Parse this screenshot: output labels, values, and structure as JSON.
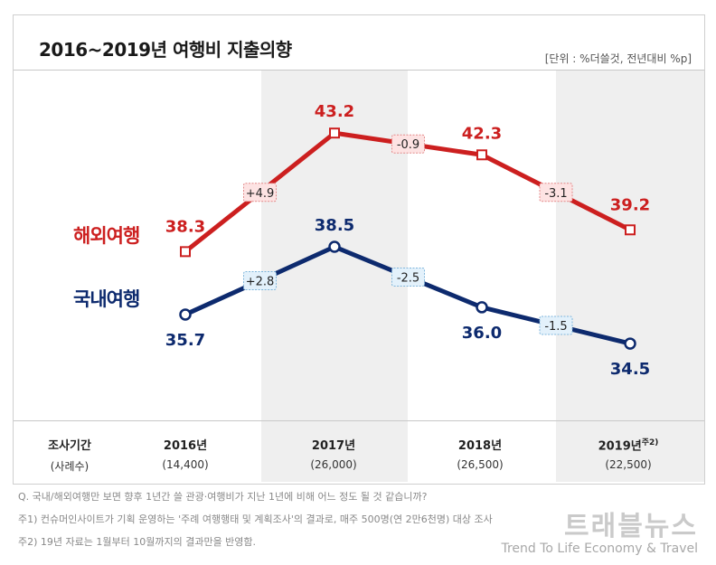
{
  "header": {
    "title": "2016~2019년 여행비 지출의향",
    "unit": "[단위 : %더쓸것, 전년대비 %p]"
  },
  "chart_data": {
    "type": "line",
    "categories": [
      "2016년",
      "2017년",
      "2018년",
      "2019년"
    ],
    "series": [
      {
        "name": "해외여행",
        "color": "#cc1f1f",
        "values": [
          38.3,
          43.2,
          42.3,
          39.2
        ],
        "changes": [
          "+4.9",
          "-0.9",
          "-3.1"
        ]
      },
      {
        "name": "국내여행",
        "color": "#0d2a6e",
        "values": [
          35.7,
          38.5,
          36.0,
          34.5
        ],
        "changes": [
          "+2.8",
          "-2.5",
          "-1.5"
        ]
      }
    ],
    "ylim": [
      32,
      45
    ]
  },
  "table": {
    "header_label": "조사기간",
    "header_sub": "(사례수)",
    "periods": [
      {
        "label": "2016년",
        "sup": "",
        "n": "(14,400)"
      },
      {
        "label": "2017년",
        "sup": "",
        "n": "(26,000)"
      },
      {
        "label": "2018년",
        "sup": "",
        "n": "(26,500)"
      },
      {
        "label": "2019년",
        "sup": "주2)",
        "n": "(22,500)"
      }
    ]
  },
  "footnotes": [
    "Q. 국내/해외여행만 보면 향후 1년간 쓸 관광·여행비가 지난 1년에 비해 어느 정도 될 것 같습니까?",
    "주1) 컨슈머인사이트가 기획 운영하는 '주례 여행행태 및 계획조사'의 결과로, 매주 500명(연 2만6천명) 대상 조사",
    "주2) 19년 자료는 1월부터 10월까지의 결과만을 반영함."
  ],
  "watermark": {
    "name": "트래블뉴스",
    "slogan": "Trend To Life Economy & Travel"
  }
}
